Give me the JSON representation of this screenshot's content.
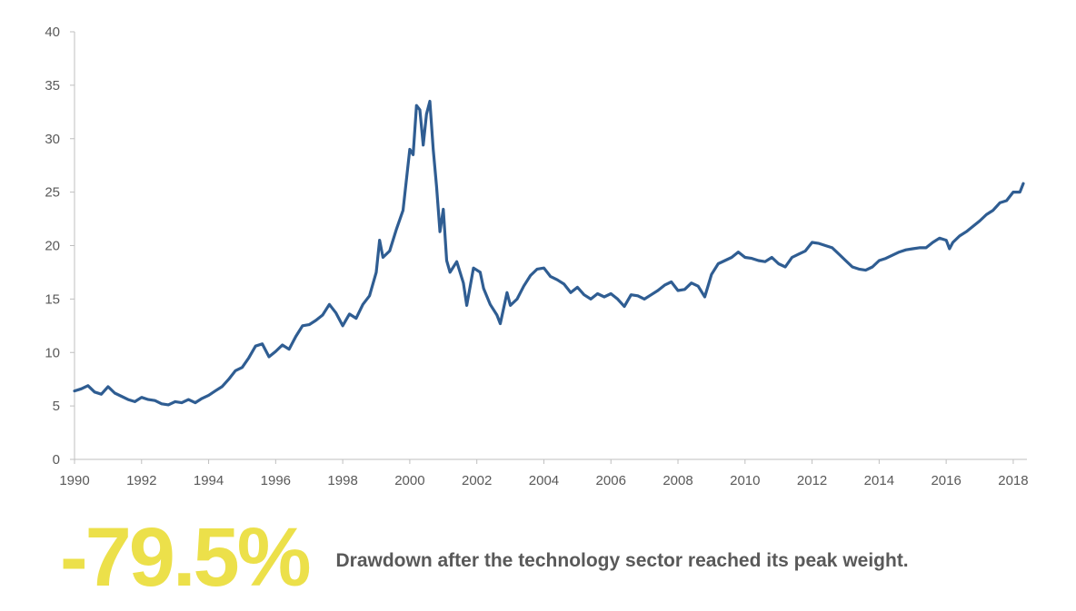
{
  "colors": {
    "series": "#2f5d92",
    "highlight": "#ece04a",
    "axis_text": "#595959",
    "axis_line": "#bfbfbf"
  },
  "chart_data": {
    "type": "line",
    "title": "",
    "xlabel": "",
    "ylabel": "",
    "xlim": [
      1990,
      2018.3
    ],
    "ylim": [
      0,
      40
    ],
    "x_ticks": [
      1990,
      1992,
      1994,
      1996,
      1998,
      2000,
      2002,
      2004,
      2006,
      2008,
      2010,
      2012,
      2014,
      2016,
      2018
    ],
    "y_ticks": [
      0,
      5,
      10,
      15,
      20,
      25,
      30,
      35,
      40
    ],
    "grid": false,
    "legend": "none",
    "series": [
      {
        "points": [
          [
            1990.0,
            6.4
          ],
          [
            1990.2,
            6.6
          ],
          [
            1990.4,
            6.9
          ],
          [
            1990.6,
            6.3
          ],
          [
            1990.8,
            6.1
          ],
          [
            1991.0,
            6.8
          ],
          [
            1991.2,
            6.2
          ],
          [
            1991.4,
            5.9
          ],
          [
            1991.6,
            5.6
          ],
          [
            1991.8,
            5.4
          ],
          [
            1992.0,
            5.8
          ],
          [
            1992.2,
            5.6
          ],
          [
            1992.4,
            5.5
          ],
          [
            1992.6,
            5.2
          ],
          [
            1992.8,
            5.1
          ],
          [
            1993.0,
            5.4
          ],
          [
            1993.2,
            5.3
          ],
          [
            1993.4,
            5.6
          ],
          [
            1993.6,
            5.3
          ],
          [
            1993.8,
            5.7
          ],
          [
            1994.0,
            6.0
          ],
          [
            1994.2,
            6.4
          ],
          [
            1994.4,
            6.8
          ],
          [
            1994.6,
            7.5
          ],
          [
            1994.8,
            8.3
          ],
          [
            1995.0,
            8.6
          ],
          [
            1995.2,
            9.5
          ],
          [
            1995.4,
            10.6
          ],
          [
            1995.6,
            10.8
          ],
          [
            1995.8,
            9.6
          ],
          [
            1996.0,
            10.1
          ],
          [
            1996.2,
            10.7
          ],
          [
            1996.4,
            10.3
          ],
          [
            1996.6,
            11.5
          ],
          [
            1996.8,
            12.5
          ],
          [
            1997.0,
            12.6
          ],
          [
            1997.2,
            13.0
          ],
          [
            1997.4,
            13.5
          ],
          [
            1997.6,
            14.5
          ],
          [
            1997.8,
            13.7
          ],
          [
            1998.0,
            12.5
          ],
          [
            1998.2,
            13.6
          ],
          [
            1998.4,
            13.2
          ],
          [
            1998.6,
            14.5
          ],
          [
            1998.8,
            15.3
          ],
          [
            1999.0,
            17.5
          ],
          [
            1999.1,
            20.5
          ],
          [
            1999.2,
            18.9
          ],
          [
            1999.4,
            19.5
          ],
          [
            1999.6,
            21.5
          ],
          [
            1999.8,
            23.3
          ],
          [
            2000.0,
            29.0
          ],
          [
            2000.1,
            28.5
          ],
          [
            2000.2,
            33.1
          ],
          [
            2000.3,
            32.7
          ],
          [
            2000.4,
            29.4
          ],
          [
            2000.5,
            32.3
          ],
          [
            2000.6,
            33.5
          ],
          [
            2000.7,
            29.0
          ],
          [
            2000.8,
            25.5
          ],
          [
            2000.9,
            21.3
          ],
          [
            2001.0,
            23.4
          ],
          [
            2001.1,
            18.6
          ],
          [
            2001.2,
            17.5
          ],
          [
            2001.4,
            18.5
          ],
          [
            2001.6,
            16.5
          ],
          [
            2001.7,
            14.4
          ],
          [
            2001.9,
            17.9
          ],
          [
            2002.1,
            17.5
          ],
          [
            2002.2,
            16.0
          ],
          [
            2002.4,
            14.5
          ],
          [
            2002.6,
            13.5
          ],
          [
            2002.7,
            12.7
          ],
          [
            2002.9,
            15.6
          ],
          [
            2003.0,
            14.4
          ],
          [
            2003.2,
            15.0
          ],
          [
            2003.4,
            16.2
          ],
          [
            2003.6,
            17.2
          ],
          [
            2003.8,
            17.8
          ],
          [
            2004.0,
            17.9
          ],
          [
            2004.2,
            17.1
          ],
          [
            2004.4,
            16.8
          ],
          [
            2004.6,
            16.4
          ],
          [
            2004.8,
            15.6
          ],
          [
            2005.0,
            16.1
          ],
          [
            2005.2,
            15.4
          ],
          [
            2005.4,
            15.0
          ],
          [
            2005.6,
            15.5
          ],
          [
            2005.8,
            15.2
          ],
          [
            2006.0,
            15.5
          ],
          [
            2006.2,
            15.0
          ],
          [
            2006.4,
            14.3
          ],
          [
            2006.6,
            15.4
          ],
          [
            2006.8,
            15.3
          ],
          [
            2007.0,
            15.0
          ],
          [
            2007.2,
            15.4
          ],
          [
            2007.4,
            15.8
          ],
          [
            2007.6,
            16.3
          ],
          [
            2007.8,
            16.6
          ],
          [
            2008.0,
            15.8
          ],
          [
            2008.2,
            15.9
          ],
          [
            2008.4,
            16.5
          ],
          [
            2008.6,
            16.2
          ],
          [
            2008.8,
            15.2
          ],
          [
            2009.0,
            17.3
          ],
          [
            2009.2,
            18.3
          ],
          [
            2009.4,
            18.6
          ],
          [
            2009.6,
            18.9
          ],
          [
            2009.8,
            19.4
          ],
          [
            2010.0,
            18.9
          ],
          [
            2010.2,
            18.8
          ],
          [
            2010.4,
            18.6
          ],
          [
            2010.6,
            18.5
          ],
          [
            2010.8,
            18.9
          ],
          [
            2011.0,
            18.3
          ],
          [
            2011.2,
            18.0
          ],
          [
            2011.4,
            18.9
          ],
          [
            2011.6,
            19.2
          ],
          [
            2011.8,
            19.5
          ],
          [
            2012.0,
            20.3
          ],
          [
            2012.2,
            20.2
          ],
          [
            2012.4,
            20.0
          ],
          [
            2012.6,
            19.8
          ],
          [
            2012.8,
            19.2
          ],
          [
            2013.0,
            18.6
          ],
          [
            2013.2,
            18.0
          ],
          [
            2013.4,
            17.8
          ],
          [
            2013.6,
            17.7
          ],
          [
            2013.8,
            18.0
          ],
          [
            2014.0,
            18.6
          ],
          [
            2014.2,
            18.8
          ],
          [
            2014.4,
            19.1
          ],
          [
            2014.6,
            19.4
          ],
          [
            2014.8,
            19.6
          ],
          [
            2015.0,
            19.7
          ],
          [
            2015.2,
            19.8
          ],
          [
            2015.4,
            19.8
          ],
          [
            2015.6,
            20.3
          ],
          [
            2015.8,
            20.7
          ],
          [
            2016.0,
            20.5
          ],
          [
            2016.1,
            19.7
          ],
          [
            2016.2,
            20.3
          ],
          [
            2016.4,
            20.9
          ],
          [
            2016.6,
            21.3
          ],
          [
            2016.8,
            21.8
          ],
          [
            2017.0,
            22.3
          ],
          [
            2017.2,
            22.9
          ],
          [
            2017.4,
            23.3
          ],
          [
            2017.6,
            24.0
          ],
          [
            2017.8,
            24.2
          ],
          [
            2018.0,
            25.0
          ],
          [
            2018.2,
            25.0
          ],
          [
            2018.3,
            25.8
          ]
        ]
      }
    ]
  },
  "footer": {
    "stat": "-79.5%",
    "caption": "Drawdown after the technology sector reached its peak weight."
  }
}
